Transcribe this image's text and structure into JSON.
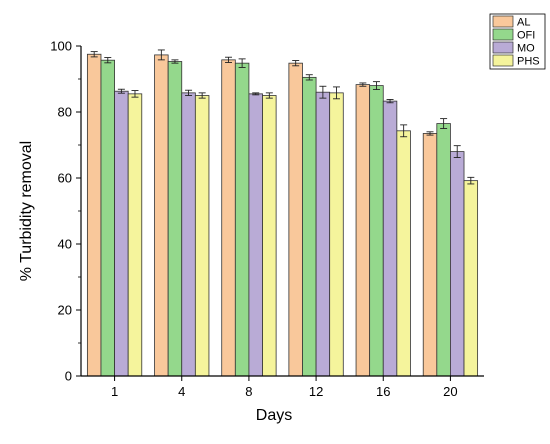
{
  "chart_data": {
    "type": "bar",
    "categories": [
      "1",
      "4",
      "8",
      "12",
      "16",
      "20"
    ],
    "xlabel": "Days",
    "ylabel": "% Turbidity removal",
    "ylim": [
      0,
      100
    ],
    "yticks": [
      "0",
      "20",
      "40",
      "60",
      "80",
      "100"
    ],
    "grid": false,
    "legend_position": "top-right",
    "error_bars": true,
    "series": [
      {
        "name": "AL",
        "color": "#F9C89B",
        "values": [
          97.5,
          97.3,
          95.8,
          94.8,
          88.3,
          73.5
        ],
        "errors": [
          0.8,
          1.5,
          0.8,
          0.8,
          0.5,
          0.5
        ]
      },
      {
        "name": "OFI",
        "color": "#94D88C",
        "values": [
          95.7,
          95.3,
          94.8,
          90.5,
          88.0,
          76.5
        ],
        "errors": [
          0.8,
          0.5,
          1.3,
          0.8,
          1.2,
          1.5
        ]
      },
      {
        "name": "MO",
        "color": "#B9ABD6",
        "values": [
          86.3,
          85.8,
          85.5,
          86.0,
          83.3,
          68.0
        ],
        "errors": [
          0.6,
          0.8,
          0.3,
          1.8,
          0.5,
          1.8
        ]
      },
      {
        "name": "PHS",
        "color": "#F5F49C",
        "values": [
          85.5,
          85.0,
          85.0,
          85.8,
          74.3,
          59.2
        ],
        "errors": [
          1.0,
          0.8,
          0.8,
          1.8,
          1.8,
          1.0
        ]
      }
    ]
  }
}
